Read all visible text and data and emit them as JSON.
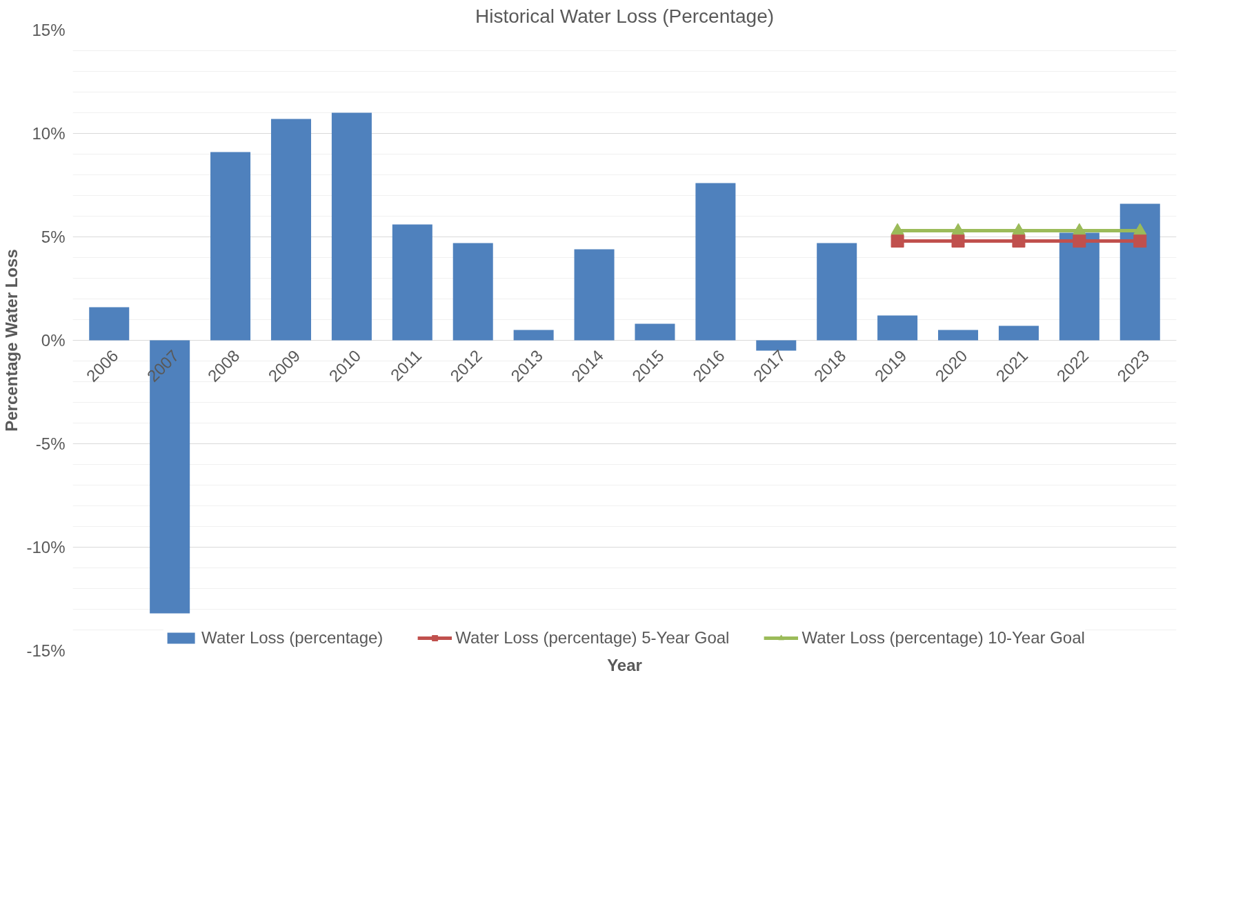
{
  "chart_data": {
    "type": "bar",
    "title": "Historical Water Loss (Percentage)",
    "xlabel": "Year",
    "ylabel": "Percentage Water Loss",
    "categories": [
      "2006",
      "2007",
      "2008",
      "2009",
      "2010",
      "2011",
      "2012",
      "2013",
      "2014",
      "2015",
      "2016",
      "2017",
      "2018",
      "2019",
      "2020",
      "2021",
      "2022",
      "2023"
    ],
    "series": [
      {
        "name": "Water Loss (percentage)",
        "color": "#4f81bd",
        "values": [
          1.6,
          -13.2,
          9.1,
          10.7,
          11.0,
          5.6,
          4.7,
          0.5,
          4.4,
          0.8,
          7.6,
          -0.5,
          4.7,
          1.2,
          0.5,
          0.7,
          5.2,
          6.6
        ]
      },
      {
        "name": "Water Loss (percentage) 5-Year Goal",
        "type": "line",
        "color": "#c0504d",
        "marker": "square",
        "values": [
          null,
          null,
          null,
          null,
          null,
          null,
          null,
          null,
          null,
          null,
          null,
          null,
          null,
          4.8,
          4.8,
          4.8,
          4.8,
          4.8
        ]
      },
      {
        "name": "Water Loss (percentage) 10-Year Goal",
        "type": "line",
        "color": "#9bbb59",
        "marker": "triangle",
        "values": [
          null,
          null,
          null,
          null,
          null,
          null,
          null,
          null,
          null,
          null,
          null,
          null,
          null,
          5.3,
          5.3,
          5.3,
          5.3,
          5.3
        ]
      }
    ],
    "ylim": [
      -15,
      15
    ],
    "yticks": [
      {
        "value": -15,
        "label": "-15%"
      },
      {
        "value": -10,
        "label": "-10%"
      },
      {
        "value": -5,
        "label": "-5%"
      },
      {
        "value": 0,
        "label": "0%"
      },
      {
        "value": 5,
        "label": "5%"
      },
      {
        "value": 10,
        "label": "10%"
      },
      {
        "value": 15,
        "label": "15%"
      }
    ],
    "grid": "y",
    "legend": "bottom"
  }
}
